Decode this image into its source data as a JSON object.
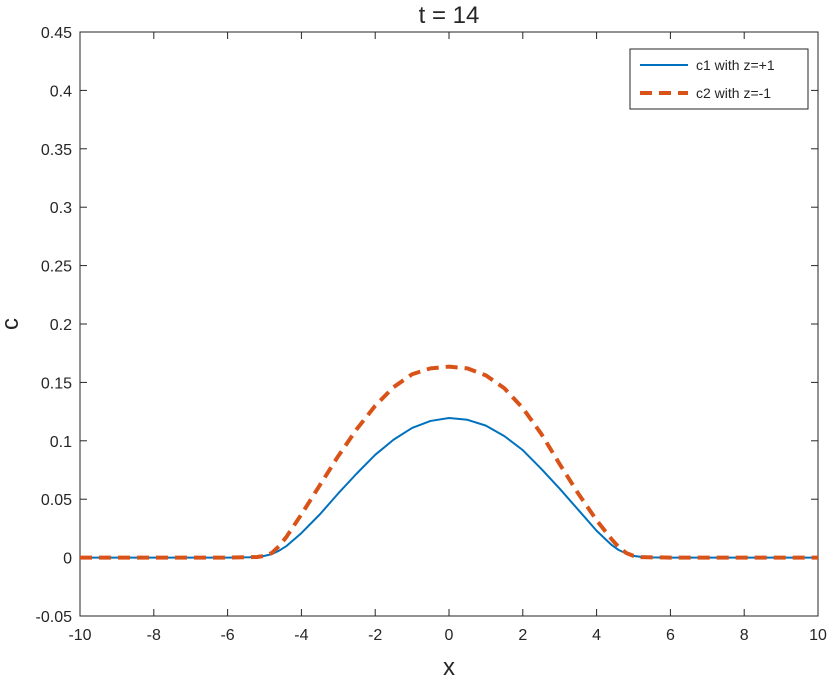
{
  "chart_data": {
    "type": "line",
    "title": "t = 14",
    "xlabel": "x",
    "ylabel": "c",
    "xlim": [
      -10,
      10
    ],
    "ylim": [
      -0.05,
      0.45
    ],
    "xticks": [
      -10,
      -8,
      -6,
      -4,
      -2,
      0,
      2,
      4,
      6,
      8,
      10
    ],
    "yticks": [
      -0.05,
      0,
      0.05,
      0.1,
      0.15,
      0.2,
      0.25,
      0.3,
      0.35,
      0.4,
      0.45
    ],
    "xtick_labels": [
      "-10",
      "-8",
      "-6",
      "-4",
      "-2",
      "0",
      "2",
      "4",
      "6",
      "8",
      "10"
    ],
    "ytick_labels": [
      "-0.05",
      "0",
      "0.05",
      "0.1",
      "0.15",
      "0.2",
      "0.25",
      "0.3",
      "0.35",
      "0.4",
      "0.45"
    ],
    "grid": false,
    "legend_position": "top-right",
    "series": [
      {
        "name": "c1 with z=+1",
        "color": "#0072BD",
        "line_style": "solid",
        "x": [
          -10,
          -6,
          -5.4,
          -5,
          -4.8,
          -4.6,
          -4.4,
          -4,
          -3.5,
          -3,
          -2.5,
          -2,
          -1.5,
          -1,
          -0.5,
          0,
          0.5,
          1,
          1.5,
          2,
          2.5,
          3,
          3.5,
          4,
          4.4,
          4.6,
          4.8,
          5,
          5.2,
          5.4,
          6,
          10
        ],
        "y": [
          0,
          0,
          0.0003,
          0.0015,
          0.003,
          0.006,
          0.01,
          0.021,
          0.037,
          0.055,
          0.072,
          0.088,
          0.101,
          0.111,
          0.117,
          0.1195,
          0.118,
          0.113,
          0.104,
          0.092,
          0.076,
          0.059,
          0.041,
          0.023,
          0.011,
          0.0065,
          0.0035,
          0.0015,
          0.0006,
          0.0002,
          0,
          0
        ]
      },
      {
        "name": "c2 with z=-1",
        "color": "#D95319",
        "line_style": "dashed",
        "x": [
          -10,
          -6,
          -5.2,
          -5,
          -4.8,
          -4.6,
          -4.4,
          -4,
          -3.5,
          -3,
          -2.5,
          -2,
          -1.5,
          -1,
          -0.5,
          0,
          0.5,
          1,
          1.5,
          2,
          2.5,
          3,
          3.5,
          4,
          4.4,
          4.6,
          4.8,
          5,
          5.2,
          6,
          10
        ],
        "y": [
          0,
          0,
          0.0005,
          0.0015,
          0.004,
          0.01,
          0.018,
          0.037,
          0.062,
          0.087,
          0.11,
          0.13,
          0.146,
          0.157,
          0.162,
          0.1635,
          0.162,
          0.156,
          0.145,
          0.128,
          0.106,
          0.08,
          0.055,
          0.032,
          0.016,
          0.009,
          0.004,
          0.0015,
          0.0004,
          0,
          0
        ]
      }
    ]
  }
}
